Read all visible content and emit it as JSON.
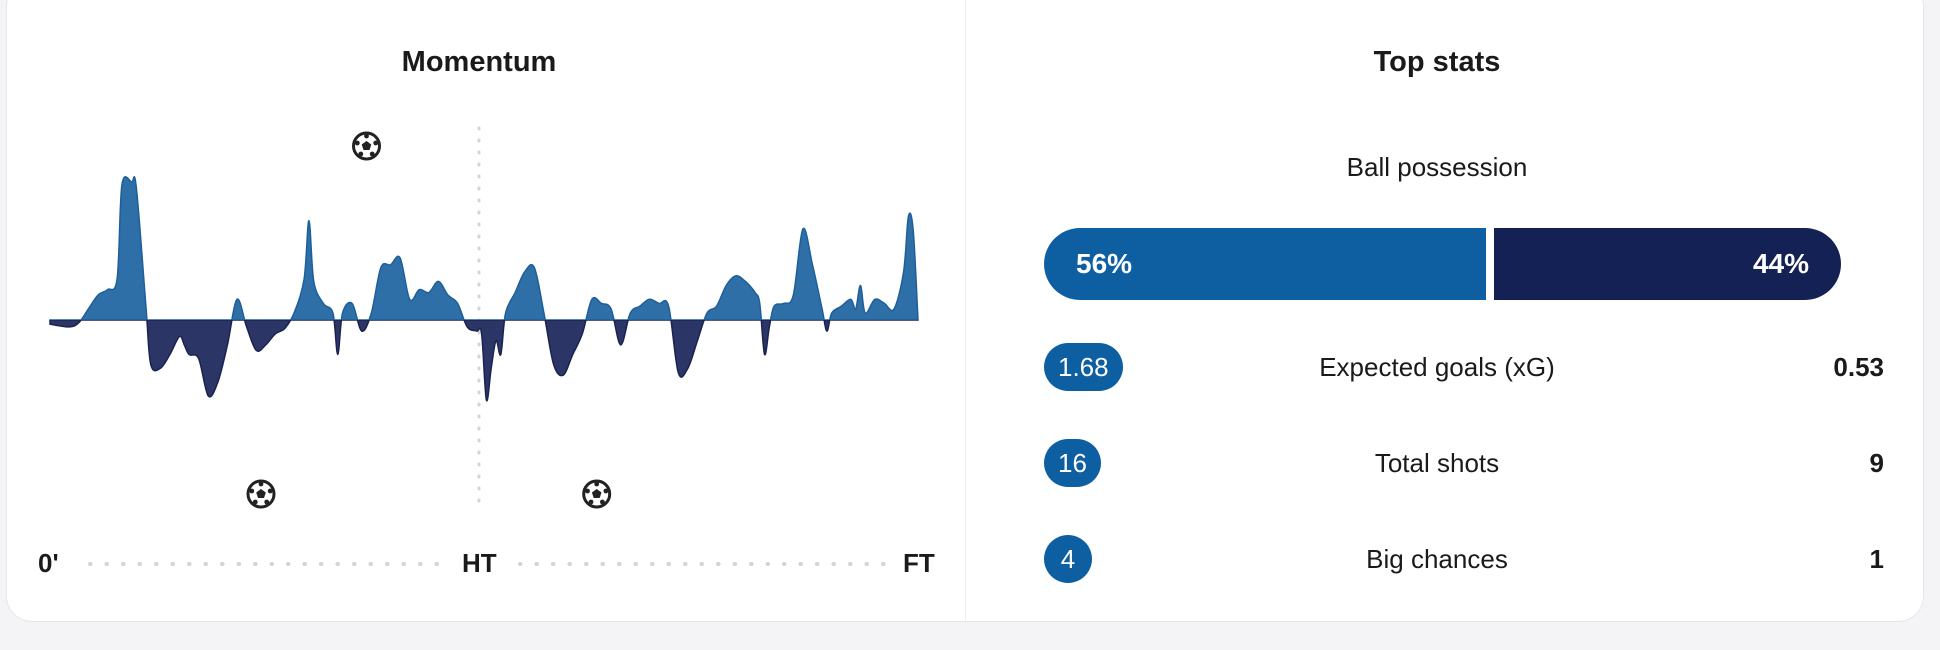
{
  "momentum": {
    "title": "Momentum",
    "axis": {
      "start": "0'",
      "half": "HT",
      "end": "FT"
    },
    "goal_icon": "football-icon",
    "goal_events": [
      {
        "minute": 33,
        "side": "home"
      },
      {
        "minute": 22,
        "side": "away"
      },
      {
        "minute": 57,
        "side": "away"
      }
    ],
    "colors": {
      "home": "#2e6fa8",
      "away": "#2b3566",
      "stroke_home": "#1e5f98",
      "stroke_away": "#1a2350"
    },
    "series": [
      [
        0,
        -0.03
      ],
      [
        2,
        -0.05
      ],
      [
        3,
        -0.02
      ],
      [
        4,
        0.08
      ],
      [
        5,
        0.18
      ],
      [
        6,
        0.22
      ],
      [
        7,
        0.3
      ],
      [
        7.5,
        0.98
      ],
      [
        8.5,
        1.0
      ],
      [
        9,
        0.96
      ],
      [
        10,
        0.1
      ],
      [
        10.5,
        -0.32
      ],
      [
        11.5,
        -0.35
      ],
      [
        12.5,
        -0.25
      ],
      [
        13.5,
        -0.12
      ],
      [
        14,
        -0.18
      ],
      [
        14.5,
        -0.25
      ],
      [
        15.5,
        -0.28
      ],
      [
        16.5,
        -0.55
      ],
      [
        17.5,
        -0.45
      ],
      [
        18.5,
        -0.18
      ],
      [
        19.5,
        0.15
      ],
      [
        20.5,
        -0.05
      ],
      [
        21.5,
        -0.22
      ],
      [
        22.5,
        -0.18
      ],
      [
        23.5,
        -0.1
      ],
      [
        24.5,
        -0.06
      ],
      [
        25.5,
        0.06
      ],
      [
        26.5,
        0.3
      ],
      [
        27,
        0.72
      ],
      [
        27.5,
        0.28
      ],
      [
        28.5,
        0.12
      ],
      [
        29.5,
        0.05
      ],
      [
        30,
        -0.25
      ],
      [
        30.5,
        0.05
      ],
      [
        31.5,
        0.12
      ],
      [
        32.5,
        -0.08
      ],
      [
        33.5,
        0.05
      ],
      [
        34.5,
        0.38
      ],
      [
        35.5,
        0.4
      ],
      [
        36.5,
        0.45
      ],
      [
        37.5,
        0.15
      ],
      [
        38.5,
        0.22
      ],
      [
        39.5,
        0.2
      ],
      [
        40.5,
        0.28
      ],
      [
        41.5,
        0.18
      ],
      [
        42.5,
        0.12
      ],
      [
        43.5,
        -0.05
      ],
      [
        44.5,
        -0.08
      ],
      [
        45,
        -0.1
      ],
      [
        45.5,
        -0.58
      ],
      [
        46,
        -0.35
      ],
      [
        46.5,
        -0.15
      ],
      [
        47,
        -0.25
      ],
      [
        47.5,
        0.05
      ],
      [
        48.5,
        0.2
      ],
      [
        49.5,
        0.35
      ],
      [
        50.5,
        0.38
      ],
      [
        51.5,
        0.05
      ],
      [
        52.5,
        -0.32
      ],
      [
        53.5,
        -0.4
      ],
      [
        54.5,
        -0.25
      ],
      [
        55.5,
        -0.1
      ],
      [
        56.5,
        0.15
      ],
      [
        57.5,
        0.12
      ],
      [
        58.5,
        0.08
      ],
      [
        59.5,
        -0.18
      ],
      [
        60.5,
        0.05
      ],
      [
        61.5,
        0.1
      ],
      [
        62.5,
        0.15
      ],
      [
        63.5,
        0.12
      ],
      [
        64.5,
        0.1
      ],
      [
        65.5,
        -0.38
      ],
      [
        66.5,
        -0.35
      ],
      [
        67.5,
        -0.15
      ],
      [
        68.5,
        0.05
      ],
      [
        69.5,
        0.1
      ],
      [
        70.5,
        0.25
      ],
      [
        71.5,
        0.32
      ],
      [
        72.5,
        0.28
      ],
      [
        73.5,
        0.2
      ],
      [
        74,
        0.12
      ],
      [
        74.5,
        -0.25
      ],
      [
        75,
        -0.05
      ],
      [
        75.5,
        0.1
      ],
      [
        76.5,
        0.12
      ],
      [
        77.5,
        0.18
      ],
      [
        78.5,
        0.66
      ],
      [
        79.5,
        0.4
      ],
      [
        80.5,
        0.08
      ],
      [
        81,
        -0.08
      ],
      [
        81.5,
        0.05
      ],
      [
        82.5,
        0.1
      ],
      [
        83.5,
        0.15
      ],
      [
        84,
        0.08
      ],
      [
        84.5,
        0.25
      ],
      [
        85,
        0.05
      ],
      [
        86,
        0.15
      ],
      [
        87,
        0.12
      ],
      [
        88,
        0.08
      ],
      [
        89,
        0.35
      ],
      [
        89.5,
        0.75
      ],
      [
        90,
        0.65
      ],
      [
        90.5,
        0.0
      ]
    ]
  },
  "top_stats": {
    "title": "Top stats",
    "possession": {
      "label": "Ball possession",
      "home": "56%",
      "away": "44%",
      "home_value": 56,
      "away_value": 44
    },
    "rows": [
      {
        "label": "Expected goals (xG)",
        "home": "1.68",
        "away": "0.53"
      },
      {
        "label": "Total shots",
        "home": "16",
        "away": "9"
      },
      {
        "label": "Big chances",
        "home": "4",
        "away": "1"
      }
    ]
  }
}
